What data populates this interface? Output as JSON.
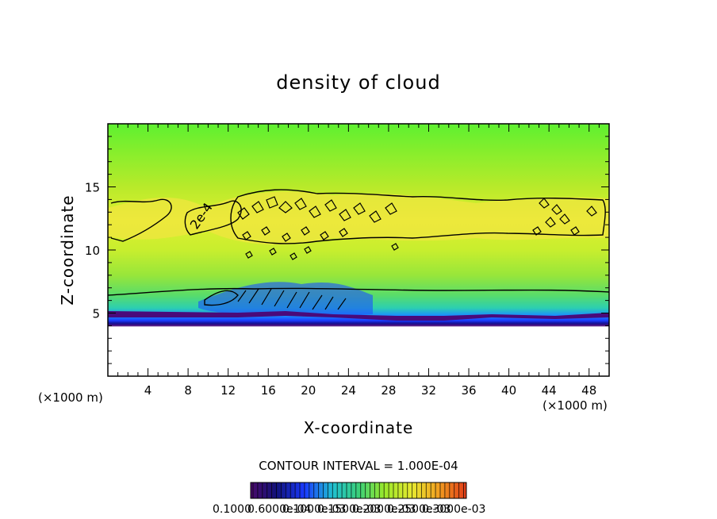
{
  "chart_data": {
    "type": "heatmap",
    "title": "density of cloud",
    "xlabel": "X-coordinate",
    "ylabel": "Z-coordinate",
    "x_unit": "(×1000 m)",
    "y_unit": "(×1000 m)",
    "xlim": [
      0,
      50
    ],
    "ylim": [
      0,
      20
    ],
    "x_ticks": [
      4,
      8,
      12,
      16,
      20,
      24,
      28,
      32,
      36,
      40,
      44,
      48
    ],
    "y_ticks": [
      5,
      10,
      15
    ],
    "contour_label": "2e-4",
    "contour_interval_text": "CONTOUR INTERVAL = 1.000E-04",
    "colorbar_labels": [
      "0.1000",
      "0.6000e-04",
      "0.1000e-03",
      "0.1500e-03",
      "0.2000e-03",
      "0.2500e-03",
      "0.3000e-03"
    ],
    "colorbar_colors": [
      "#4a0a6a",
      "#12127a",
      "#1a3aff",
      "#20c0d0",
      "#3ad07a",
      "#9ae82a",
      "#e8e830",
      "#f2a020",
      "#e03a18"
    ],
    "cloud_base_km": 5,
    "cloud_top_km": 19.7,
    "high_density_layer_km": [
      10.5,
      14
    ]
  }
}
